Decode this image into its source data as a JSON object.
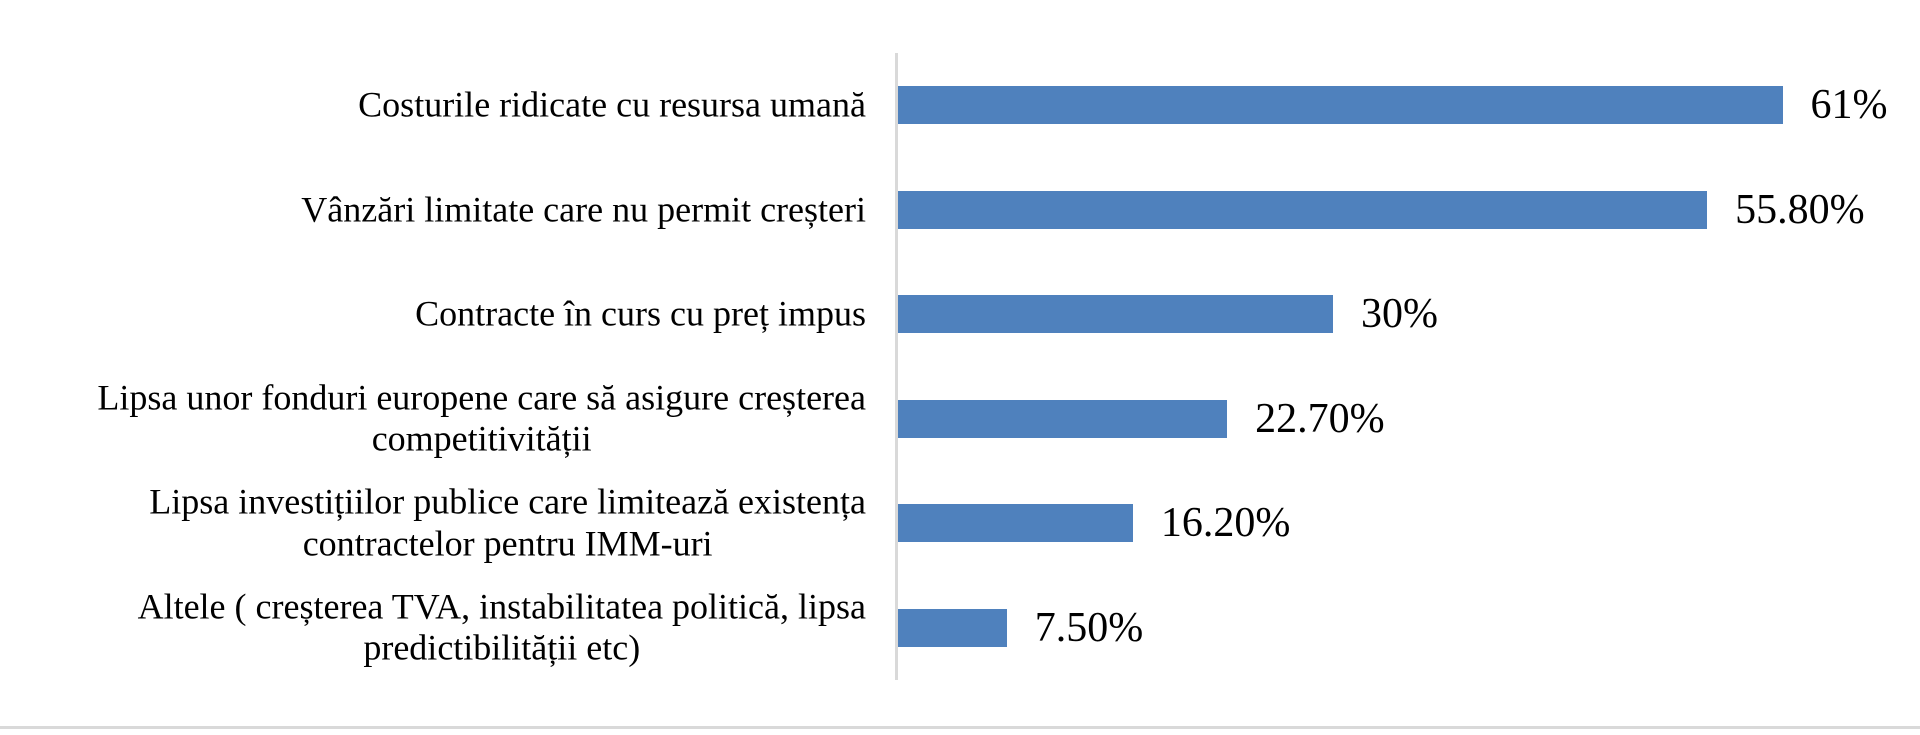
{
  "page": {
    "background_color": "#ffffff",
    "bottom_border_color": "#d9d9d9"
  },
  "chart_data": {
    "type": "bar",
    "orientation": "horizontal",
    "title": "",
    "categories": [
      "Costurile ridicate cu resursa umană",
      "Vânzări limitate care nu permit creșteri",
      "Contracte în curs cu preț impus",
      "Lipsa unor fonduri europene care să asigure creșterea\ncompetitivității",
      "Lipsa investițiilor publice care limitează existența\ncontractelor pentru IMM-uri",
      "Altele ( creșterea TVA, instabilitatea politică, lipsa\npredictibilității etc)"
    ],
    "values": [
      61,
      55.8,
      30,
      22.7,
      16.2,
      7.5
    ],
    "value_labels": [
      "61%",
      "55.80%",
      "30%",
      "22.70%",
      "16.20%",
      "7.50%"
    ],
    "xlabel": "",
    "ylabel": "",
    "xlim": [
      0,
      70
    ],
    "grid": false,
    "legend": false,
    "bar_color": "#4f81bd",
    "axis_line_color": "#d9d9d9",
    "label_color": "#000000"
  }
}
